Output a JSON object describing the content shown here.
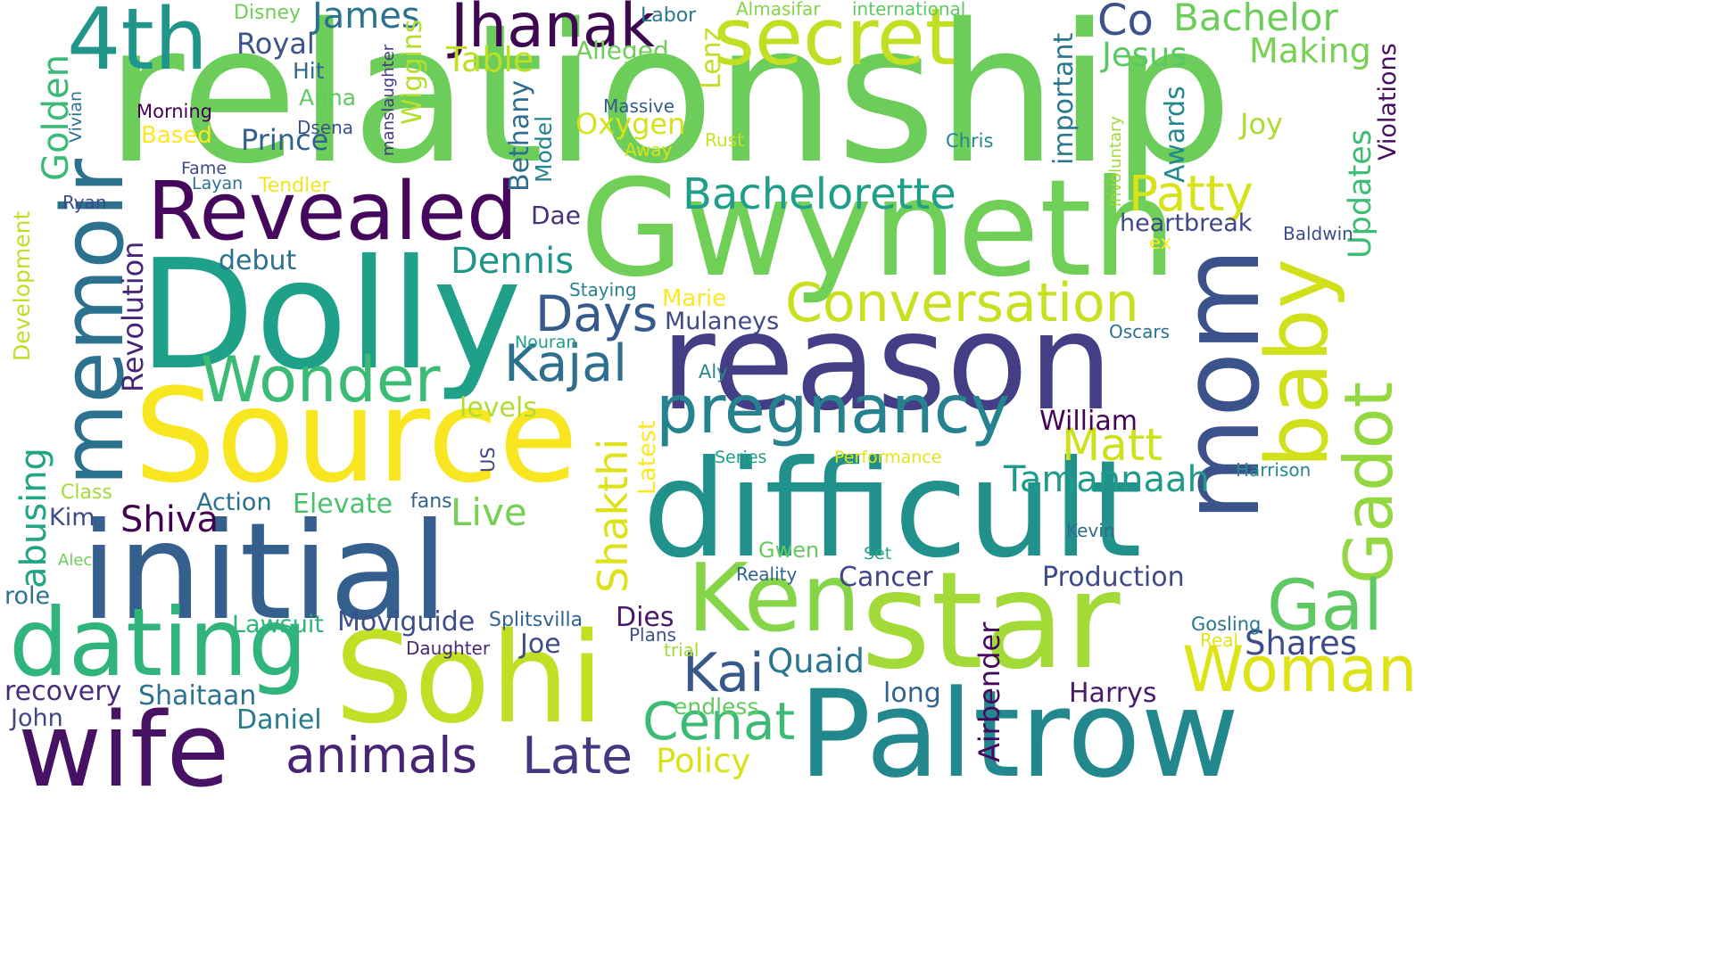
{
  "cloud": {
    "words": [
      {
        "text": "relationship",
        "color": "#6ccd5a",
        "angle": 0
      },
      {
        "text": "Gwyneth",
        "color": "#70cf57",
        "angle": 0
      },
      {
        "text": "Dolly",
        "color": "#1fa088",
        "angle": 0
      },
      {
        "text": "Source",
        "color": "#f8e621",
        "angle": 0
      },
      {
        "text": "reason",
        "color": "#433e85",
        "angle": 0
      },
      {
        "text": "difficult",
        "color": "#21918c",
        "angle": 0
      },
      {
        "text": "star",
        "color": "#a2da37",
        "angle": 0
      },
      {
        "text": "initial",
        "color": "#355f8d",
        "angle": 0
      },
      {
        "text": "Sohi",
        "color": "#c0df25",
        "angle": 0
      },
      {
        "text": "Paltrow",
        "color": "#23888e",
        "angle": 0
      },
      {
        "text": "wife",
        "color": "#471164",
        "angle": 0
      },
      {
        "text": "dating",
        "color": "#2fb47c",
        "angle": 0
      },
      {
        "text": "Ken",
        "color": "#86d549",
        "angle": 0
      },
      {
        "text": "mom",
        "color": "#3b528b",
        "angle": -90
      },
      {
        "text": "memoir",
        "color": "#2c728e",
        "angle": -90
      },
      {
        "text": "baby",
        "color": "#d0e11c",
        "angle": -90
      },
      {
        "text": "Gadot",
        "color": "#93d741",
        "angle": -90
      },
      {
        "text": "Revealed",
        "color": "#46085c",
        "angle": 0
      },
      {
        "text": "secret",
        "color": "#c2df23",
        "angle": 0
      },
      {
        "text": "4th",
        "color": "#1f958b",
        "angle": 0
      },
      {
        "text": "Jhanak",
        "color": "#3e0751",
        "angle": 0
      },
      {
        "text": "pregnancy",
        "color": "#26828e",
        "angle": 0
      },
      {
        "text": "Woman",
        "color": "#dde318",
        "angle": 0
      },
      {
        "text": "Gal",
        "color": "#5ec962",
        "angle": 0
      },
      {
        "text": "Wonder",
        "color": "#3bbb75",
        "angle": 0
      },
      {
        "text": "Conversation",
        "color": "#c8e020",
        "angle": 0
      },
      {
        "text": "Bachelorette",
        "color": "#1f9e89",
        "angle": 0
      },
      {
        "text": "Patty",
        "color": "#d8e219",
        "angle": 0
      },
      {
        "text": "Kajal",
        "color": "#2d708e",
        "angle": 0
      },
      {
        "text": "Days",
        "color": "#375a8c",
        "angle": 0
      },
      {
        "text": "Kai",
        "color": "#38588c",
        "angle": 0
      },
      {
        "text": "Cenat",
        "color": "#3bbb75",
        "angle": 0
      },
      {
        "text": "Late",
        "color": "#453781",
        "angle": 0
      },
      {
        "text": "animals",
        "color": "#482475",
        "angle": 0
      },
      {
        "text": "Matt",
        "color": "#cde11d",
        "angle": 0
      },
      {
        "text": "Shakthi",
        "color": "#dde318",
        "angle": -90
      },
      {
        "text": "Live",
        "color": "#75d054",
        "angle": 0
      },
      {
        "text": "Shiva",
        "color": "#440154",
        "angle": 0
      },
      {
        "text": "Dennis",
        "color": "#1f968b",
        "angle": 0
      },
      {
        "text": "Tamannaah",
        "color": "#1e9b8a",
        "angle": 0
      },
      {
        "text": "Shares",
        "color": "#3e4c8a",
        "angle": 0
      },
      {
        "text": "Quaid",
        "color": "#2b758e",
        "angle": 0
      },
      {
        "text": "Policy",
        "color": "#d8e219",
        "angle": 0
      },
      {
        "text": "Moviguide",
        "color": "#3d4e8a",
        "angle": 0
      },
      {
        "text": "Bachelor",
        "color": "#6ccd5a",
        "angle": 0
      },
      {
        "text": "Making",
        "color": "#77d153",
        "angle": 0
      },
      {
        "text": "Jesus",
        "color": "#5cc863",
        "angle": 0
      },
      {
        "text": "Co",
        "color": "#3b528b",
        "angle": 0
      },
      {
        "text": "James",
        "color": "#2c728e",
        "angle": 0
      },
      {
        "text": "Table",
        "color": "#bddf26",
        "angle": 0
      },
      {
        "text": "Joy",
        "color": "#addc30",
        "angle": 0
      },
      {
        "text": "Updates",
        "color": "#3dbc74",
        "angle": -90
      },
      {
        "text": "Golden",
        "color": "#3aba76",
        "angle": -90
      },
      {
        "text": "abusing",
        "color": "#21a685",
        "angle": -90
      },
      {
        "text": "Revolution",
        "color": "#482677",
        "angle": -90
      },
      {
        "text": "Prince",
        "color": "#34608d",
        "angle": 0
      },
      {
        "text": "Royal",
        "color": "#3b528b",
        "angle": 0
      },
      {
        "text": "Oxygen",
        "color": "#d5e21a",
        "angle": 0
      },
      {
        "text": "Alleged",
        "color": "#6ece58",
        "angle": 0
      },
      {
        "text": "debut",
        "color": "#2d708e",
        "angle": 0
      },
      {
        "text": "Dae",
        "color": "#472f7d",
        "angle": 0
      },
      {
        "text": "Mulaneys",
        "color": "#3e4989",
        "angle": 0
      },
      {
        "text": "Marie",
        "color": "#fde725",
        "angle": 0
      },
      {
        "text": "Cancer",
        "color": "#404688",
        "angle": 0
      },
      {
        "text": "Production",
        "color": "#3e4989",
        "angle": 0
      },
      {
        "text": "heartbreak",
        "color": "#3f4788",
        "angle": 0
      },
      {
        "text": "Elevate",
        "color": "#4ac16d",
        "angle": 0
      },
      {
        "text": "Action",
        "color": "#2c728e",
        "angle": 0
      },
      {
        "text": "William",
        "color": "#450457",
        "angle": 0
      },
      {
        "text": "Harrys",
        "color": "#481b6d",
        "angle": 0
      },
      {
        "text": "long",
        "color": "#33628d",
        "angle": 0
      },
      {
        "text": "Dies",
        "color": "#48186a",
        "angle": 0
      },
      {
        "text": "Joe",
        "color": "#3d4d8a",
        "angle": 0
      },
      {
        "text": "Daniel",
        "color": "#287c8e",
        "angle": 0
      },
      {
        "text": "Shaitaan",
        "color": "#2c728e",
        "angle": 0
      },
      {
        "text": "recovery",
        "color": "#472d7b",
        "angle": 0
      },
      {
        "text": "John",
        "color": "#3f4788",
        "angle": 0
      },
      {
        "text": "role",
        "color": "#2d708e",
        "angle": 0
      },
      {
        "text": "Kim",
        "color": "#3e4989",
        "angle": 0
      },
      {
        "text": "Lawsuit",
        "color": "#2fb47c",
        "angle": 0
      },
      {
        "text": "endless",
        "color": "#60ca60",
        "angle": 0
      },
      {
        "text": "levels",
        "color": "#b0dd2f",
        "angle": 0
      },
      {
        "text": "Airbender",
        "color": "#46085c",
        "angle": -90
      },
      {
        "text": "Latest",
        "color": "#fde725",
        "angle": -90
      },
      {
        "text": "Bethany",
        "color": "#2f6c8e",
        "angle": -90
      },
      {
        "text": "Wiggins",
        "color": "#b5de2b",
        "angle": -90
      },
      {
        "text": "important",
        "color": "#29798e",
        "angle": -90
      },
      {
        "text": "Awards",
        "color": "#23898e",
        "angle": -90
      },
      {
        "text": "Lenz",
        "color": "#c2df23",
        "angle": -90
      },
      {
        "text": "Model",
        "color": "#25848e",
        "angle": -90
      },
      {
        "text": "Development",
        "color": "#bddf26",
        "angle": -90
      },
      {
        "text": "Violations",
        "color": "#460b5e",
        "angle": -90
      },
      {
        "text": "Hit",
        "color": "#31688e",
        "angle": 0
      },
      {
        "text": "Anna",
        "color": "#60ca60",
        "angle": 0
      },
      {
        "text": "Disney",
        "color": "#6ece58",
        "angle": 0
      },
      {
        "text": "Labor",
        "color": "#2a788e",
        "angle": 0
      },
      {
        "text": "Almasifar",
        "color": "#86d549",
        "angle": 0
      },
      {
        "text": "international",
        "color": "#5ec962",
        "angle": 0
      },
      {
        "text": "Morning",
        "color": "#440154",
        "angle": 0
      },
      {
        "text": "Based",
        "color": "#fde725",
        "angle": 0
      },
      {
        "text": "Dsena",
        "color": "#3b528b",
        "angle": 0
      },
      {
        "text": "Fame",
        "color": "#3e4989",
        "angle": 0
      },
      {
        "text": "Layan",
        "color": "#2c728e",
        "angle": 0
      },
      {
        "text": "Tendler",
        "color": "#f1e51d",
        "angle": 0
      },
      {
        "text": "Ryan",
        "color": "#3e4989",
        "angle": 0
      },
      {
        "text": "Massive",
        "color": "#375a8c",
        "angle": 0
      },
      {
        "text": "Away",
        "color": "#d8e219",
        "angle": 0
      },
      {
        "text": "Rust",
        "color": "#cae11f",
        "angle": 0
      },
      {
        "text": "Chris",
        "color": "#23898e",
        "angle": 0
      },
      {
        "text": "ex",
        "color": "#fde725",
        "angle": 0
      },
      {
        "text": "Baldwin",
        "color": "#3d4d8a",
        "angle": 0
      },
      {
        "text": "Staying",
        "color": "#26828e",
        "angle": 0
      },
      {
        "text": "Nouran",
        "color": "#1fa088",
        "angle": 0
      },
      {
        "text": "Oscars",
        "color": "#2c718e",
        "angle": 0
      },
      {
        "text": "Aly",
        "color": "#24868e",
        "angle": 0
      },
      {
        "text": "Series",
        "color": "#1f9e89",
        "angle": 0
      },
      {
        "text": "Performance",
        "color": "#e2e418",
        "angle": 0
      },
      {
        "text": "Harrison",
        "color": "#24878e",
        "angle": 0
      },
      {
        "text": "Class",
        "color": "#a5db36",
        "angle": 0
      },
      {
        "text": "fans",
        "color": "#33628d",
        "angle": 0
      },
      {
        "text": "Kevin",
        "color": "#2f6b8e",
        "angle": 0
      },
      {
        "text": "Gwen",
        "color": "#65cb5e",
        "angle": 0
      },
      {
        "text": "Set",
        "color": "#22a785",
        "angle": 0
      },
      {
        "text": "Alec",
        "color": "#6ece58",
        "angle": 0
      },
      {
        "text": "Reality",
        "color": "#32648e",
        "angle": 0
      },
      {
        "text": "Splitsvilla",
        "color": "#33638d",
        "angle": 0
      },
      {
        "text": "Plans",
        "color": "#3b528b",
        "angle": 0
      },
      {
        "text": "trial",
        "color": "#a2da37",
        "angle": 0
      },
      {
        "text": "Daughter",
        "color": "#482878",
        "angle": 0
      },
      {
        "text": "Gosling",
        "color": "#2a768e",
        "angle": 0
      },
      {
        "text": "Real",
        "color": "#e2e418",
        "angle": 0
      },
      {
        "text": "Vivian",
        "color": "#2c728e",
        "angle": -90
      },
      {
        "text": "manslaughter",
        "color": "#443983",
        "angle": -90
      },
      {
        "text": "involuntary",
        "color": "#a0da39",
        "angle": -90
      },
      {
        "text": "US",
        "color": "#404688",
        "angle": -90
      }
    ]
  }
}
